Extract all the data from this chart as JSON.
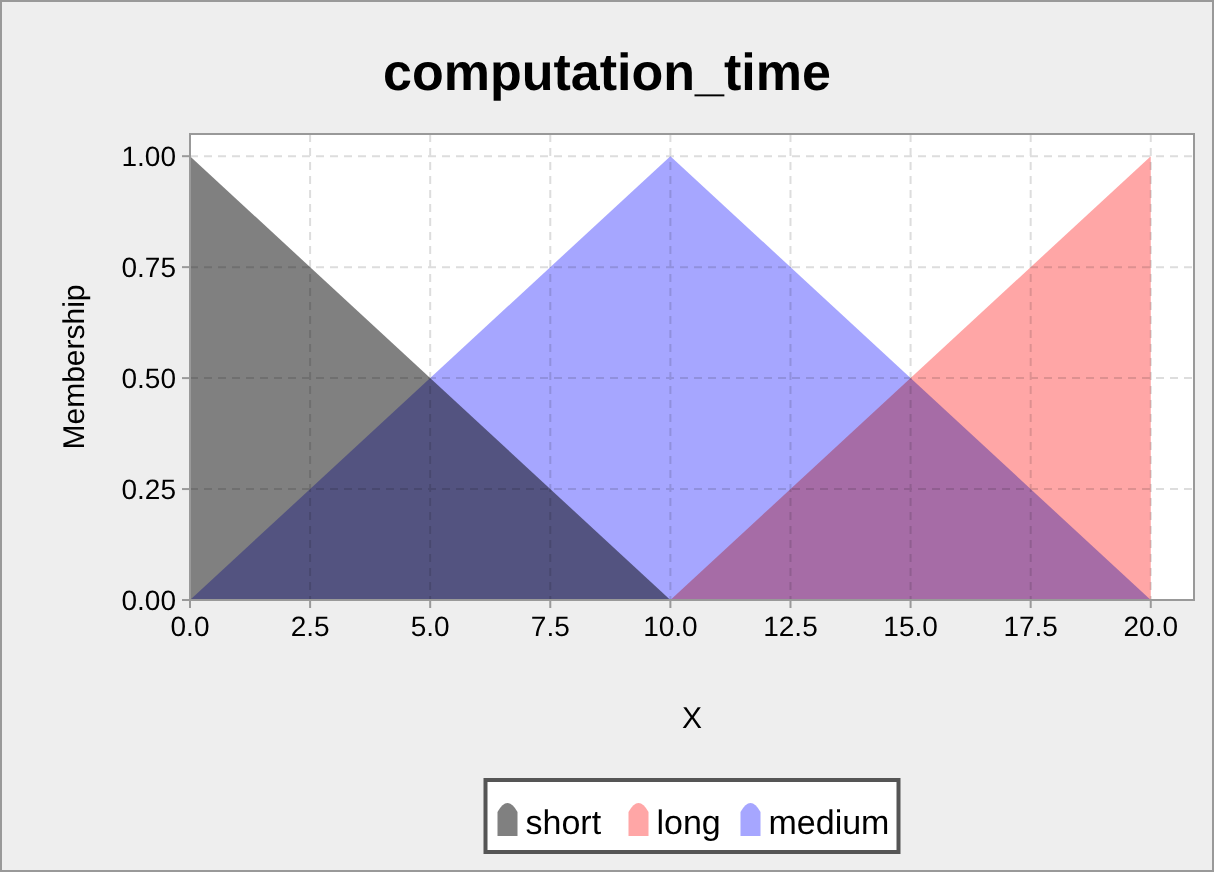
{
  "chart_data": {
    "type": "area",
    "title": "computation_time",
    "xlabel": "X",
    "ylabel": "Membership",
    "xlim": [
      0,
      20.9
    ],
    "ylim": [
      0,
      1.05
    ],
    "xticks": [
      {
        "value": 0,
        "label": "0.0"
      },
      {
        "value": 2.5,
        "label": "2.5"
      },
      {
        "value": 5,
        "label": "5.0"
      },
      {
        "value": 7.5,
        "label": "7.5"
      },
      {
        "value": 10,
        "label": "10.0"
      },
      {
        "value": 12.5,
        "label": "12.5"
      },
      {
        "value": 15,
        "label": "15.0"
      },
      {
        "value": 17.5,
        "label": "17.5"
      },
      {
        "value": 20,
        "label": "20.0"
      }
    ],
    "yticks": [
      {
        "value": 0,
        "label": "0.00"
      },
      {
        "value": 0.25,
        "label": "0.25"
      },
      {
        "value": 0.5,
        "label": "0.50"
      },
      {
        "value": 0.75,
        "label": "0.75"
      },
      {
        "value": 1,
        "label": "1.00"
      }
    ],
    "series": [
      {
        "name": "short",
        "color": "#808080",
        "x": [
          0,
          10
        ],
        "values": [
          1,
          0
        ]
      },
      {
        "name": "long",
        "color": "#ffa6a6",
        "x": [
          10,
          20
        ],
        "values": [
          0,
          1
        ]
      },
      {
        "name": "medium",
        "color": "#a6a6ff",
        "x": [
          0,
          10,
          20
        ],
        "values": [
          0,
          1,
          0
        ]
      }
    ],
    "grid": true,
    "legend": "bottom"
  }
}
